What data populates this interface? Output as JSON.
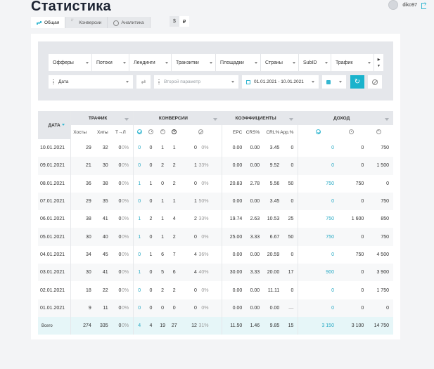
{
  "page": {
    "title": "Статистика"
  },
  "user": {
    "name": "diko97"
  },
  "tabs": [
    {
      "label": "Общая",
      "icon": "bars-chart-icon",
      "active": true
    },
    {
      "label": "Конверсии",
      "icon": "sort-arrows-icon",
      "active": false
    },
    {
      "label": "Аналитика",
      "icon": "pie-chart-icon",
      "active": false
    }
  ],
  "currency": [
    {
      "label": "$",
      "active": false
    },
    {
      "label": "₽",
      "active": true
    }
  ],
  "filters": {
    "items": [
      "Офферы",
      "Потоки",
      "Лендинги",
      "Транзитки",
      "Площадки",
      "Страны",
      "SubID",
      "Трафик"
    ],
    "param1": "Дата",
    "param2_placeholder": "Второй параметр",
    "date_range": "01.01.2021 - 10.01.2021"
  },
  "table": {
    "date_header": "ДАТА",
    "groups": [
      "ТРАФИК",
      "КОНВЕРСИИ",
      "КОЭФФИЦИЕНТЫ",
      "ДОХОД"
    ],
    "traffic_cols": [
      "Хосты",
      "Хиты",
      "Т→Л"
    ],
    "coef_cols": [
      "EPC",
      "CRS%",
      "CRL%",
      "App.%"
    ],
    "rows": [
      {
        "date": "10.01.2021",
        "hosts": "29",
        "hits": "32",
        "tl": "0",
        "tlp": "0%",
        "c_ok": "0",
        "c_hold": "0",
        "c_rej": "1",
        "c_paid": "1",
        "c_trash": "0",
        "c_trashp": "0%",
        "epc": "0.00",
        "crs": "0.00",
        "crl": "3.45",
        "app": "0",
        "i_ok": "0",
        "i_hold": "0",
        "i_rej": "750"
      },
      {
        "date": "09.01.2021",
        "hosts": "21",
        "hits": "30",
        "tl": "0",
        "tlp": "0%",
        "c_ok": "0",
        "c_hold": "0",
        "c_rej": "2",
        "c_paid": "2",
        "c_trash": "1",
        "c_trashp": "33%",
        "epc": "0.00",
        "crs": "0.00",
        "crl": "9.52",
        "app": "0",
        "i_ok": "0",
        "i_hold": "0",
        "i_rej": "1 500"
      },
      {
        "date": "08.01.2021",
        "hosts": "36",
        "hits": "38",
        "tl": "0",
        "tlp": "0%",
        "c_ok": "1",
        "c_hold": "1",
        "c_rej": "0",
        "c_paid": "2",
        "c_trash": "0",
        "c_trashp": "0%",
        "epc": "20.83",
        "crs": "2.78",
        "crl": "5.56",
        "app": "50",
        "i_ok": "750",
        "i_hold": "750",
        "i_rej": "0"
      },
      {
        "date": "07.01.2021",
        "hosts": "29",
        "hits": "35",
        "tl": "0",
        "tlp": "0%",
        "c_ok": "0",
        "c_hold": "0",
        "c_rej": "1",
        "c_paid": "1",
        "c_trash": "1",
        "c_trashp": "50%",
        "epc": "0.00",
        "crs": "0.00",
        "crl": "3.45",
        "app": "0",
        "i_ok": "0",
        "i_hold": "0",
        "i_rej": "750"
      },
      {
        "date": "06.01.2021",
        "hosts": "38",
        "hits": "41",
        "tl": "0",
        "tlp": "0%",
        "c_ok": "1",
        "c_hold": "2",
        "c_rej": "1",
        "c_paid": "4",
        "c_trash": "2",
        "c_trashp": "33%",
        "epc": "19.74",
        "crs": "2.63",
        "crl": "10.53",
        "app": "25",
        "i_ok": "750",
        "i_hold": "1 600",
        "i_rej": "850"
      },
      {
        "date": "05.01.2021",
        "hosts": "30",
        "hits": "40",
        "tl": "0",
        "tlp": "0%",
        "c_ok": "1",
        "c_hold": "0",
        "c_rej": "1",
        "c_paid": "2",
        "c_trash": "0",
        "c_trashp": "0%",
        "epc": "25.00",
        "crs": "3.33",
        "crl": "6.67",
        "app": "50",
        "i_ok": "750",
        "i_hold": "0",
        "i_rej": "750"
      },
      {
        "date": "04.01.2021",
        "hosts": "34",
        "hits": "45",
        "tl": "0",
        "tlp": "0%",
        "c_ok": "0",
        "c_hold": "1",
        "c_rej": "6",
        "c_paid": "7",
        "c_trash": "4",
        "c_trashp": "36%",
        "epc": "0.00",
        "crs": "0.00",
        "crl": "20.59",
        "app": "0",
        "i_ok": "0",
        "i_hold": "750",
        "i_rej": "4 500"
      },
      {
        "date": "03.01.2021",
        "hosts": "30",
        "hits": "41",
        "tl": "0",
        "tlp": "0%",
        "c_ok": "1",
        "c_hold": "0",
        "c_rej": "5",
        "c_paid": "6",
        "c_trash": "4",
        "c_trashp": "40%",
        "epc": "30.00",
        "crs": "3.33",
        "crl": "20.00",
        "app": "17",
        "i_ok": "900",
        "i_hold": "0",
        "i_rej": "3 900"
      },
      {
        "date": "02.01.2021",
        "hosts": "18",
        "hits": "22",
        "tl": "0",
        "tlp": "0%",
        "c_ok": "0",
        "c_hold": "0",
        "c_rej": "2",
        "c_paid": "2",
        "c_trash": "0",
        "c_trashp": "0%",
        "epc": "0.00",
        "crs": "0.00",
        "crl": "11.11",
        "app": "0",
        "i_ok": "0",
        "i_hold": "0",
        "i_rej": "1 750"
      },
      {
        "date": "01.01.2021",
        "hosts": "9",
        "hits": "11",
        "tl": "0",
        "tlp": "0%",
        "c_ok": "0",
        "c_hold": "0",
        "c_rej": "0",
        "c_paid": "0",
        "c_trash": "0",
        "c_trashp": "0%",
        "epc": "0.00",
        "crs": "0.00",
        "crl": "0.00",
        "app": "—",
        "i_ok": "0",
        "i_hold": "0",
        "i_rej": "0"
      }
    ],
    "total": {
      "date": "Всего",
      "hosts": "274",
      "hits": "335",
      "tl": "0",
      "tlp": "0%",
      "c_ok": "4",
      "c_hold": "4",
      "c_rej": "19",
      "c_paid": "27",
      "c_trash": "12",
      "c_trashp": "31%",
      "epc": "11.50",
      "crs": "1.46",
      "crl": "9.85",
      "app": "15",
      "i_ok": "3 150",
      "i_hold": "3 100",
      "i_rej": "14 750"
    }
  },
  "colors": {
    "accent": "#19b3cc",
    "title": "#1d2433",
    "panel": "#e5e7eb"
  }
}
